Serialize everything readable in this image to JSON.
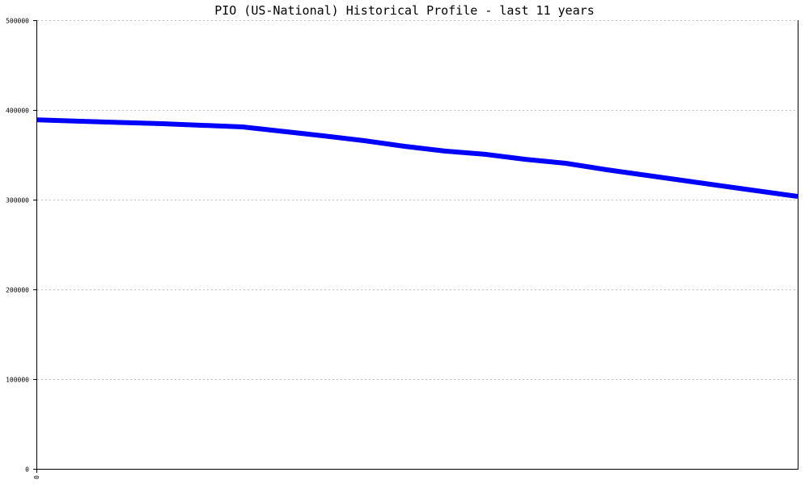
{
  "chart_data": {
    "type": "line",
    "title": "PIO (US-National) Historical Profile - last 11 years",
    "xlabel": "",
    "ylabel": "",
    "ylim": [
      0,
      500000
    ],
    "yticks": [
      0,
      100000,
      200000,
      300000,
      400000,
      500000
    ],
    "ytick_labels": [
      "0",
      "100000",
      "200000",
      "300000",
      "400000",
      "500000"
    ],
    "xtick_labels": [
      "0"
    ],
    "grid": true,
    "series": [
      {
        "color": "#0000ff",
        "x": [
          0,
          0.057,
          0.164,
          0.27,
          0.376,
          0.43,
          0.483,
          0.536,
          0.589,
          0.642,
          0.695,
          0.749,
          0.802,
          0.855,
          0.908,
          1.0
        ],
        "values": [
          389000,
          387400,
          384700,
          381100,
          371200,
          365800,
          359500,
          354100,
          350500,
          345000,
          340500,
          333300,
          327000,
          320700,
          314400,
          303600
        ]
      }
    ]
  }
}
